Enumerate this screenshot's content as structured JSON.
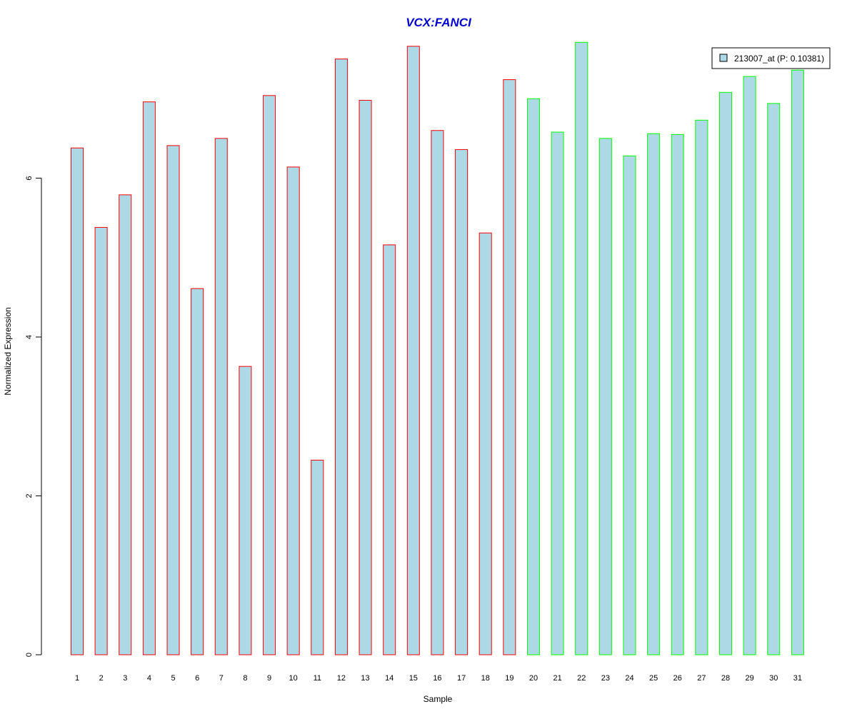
{
  "chart_data": {
    "type": "bar",
    "title": "VCX:FANCI",
    "xlabel": "Sample",
    "ylabel": "Normalized Expression",
    "ylim": [
      0,
      7.8
    ],
    "yticks": [
      0,
      2,
      4,
      6
    ],
    "categories": [
      "1",
      "2",
      "3",
      "4",
      "5",
      "6",
      "7",
      "8",
      "9",
      "10",
      "11",
      "12",
      "13",
      "14",
      "15",
      "16",
      "17",
      "18",
      "19",
      "20",
      "21",
      "22",
      "23",
      "24",
      "25",
      "26",
      "27",
      "28",
      "29",
      "30",
      "31"
    ],
    "values": [
      6.38,
      5.38,
      5.79,
      6.96,
      6.41,
      4.61,
      6.5,
      3.63,
      7.04,
      6.14,
      2.45,
      7.5,
      6.98,
      5.16,
      7.66,
      6.6,
      6.36,
      5.31,
      7.24,
      7.0,
      6.58,
      7.71,
      6.5,
      6.28,
      6.56,
      6.55,
      6.73,
      7.08,
      7.28,
      6.94,
      7.36
    ],
    "groups": [
      "red",
      "red",
      "red",
      "red",
      "red",
      "red",
      "red",
      "red",
      "red",
      "red",
      "red",
      "red",
      "red",
      "red",
      "red",
      "red",
      "red",
      "red",
      "red",
      "green",
      "green",
      "green",
      "green",
      "green",
      "green",
      "green",
      "green",
      "green",
      "green",
      "green",
      "green"
    ],
    "legend": {
      "label": "213007_at (P: 0.10381)",
      "position": "top-right"
    },
    "colors": {
      "bar_fill": "#add8e6",
      "border_group1": "#ff0000",
      "border_group2": "#00ff00",
      "title": "#0000cd",
      "axis": "#000000"
    },
    "grid": false
  }
}
